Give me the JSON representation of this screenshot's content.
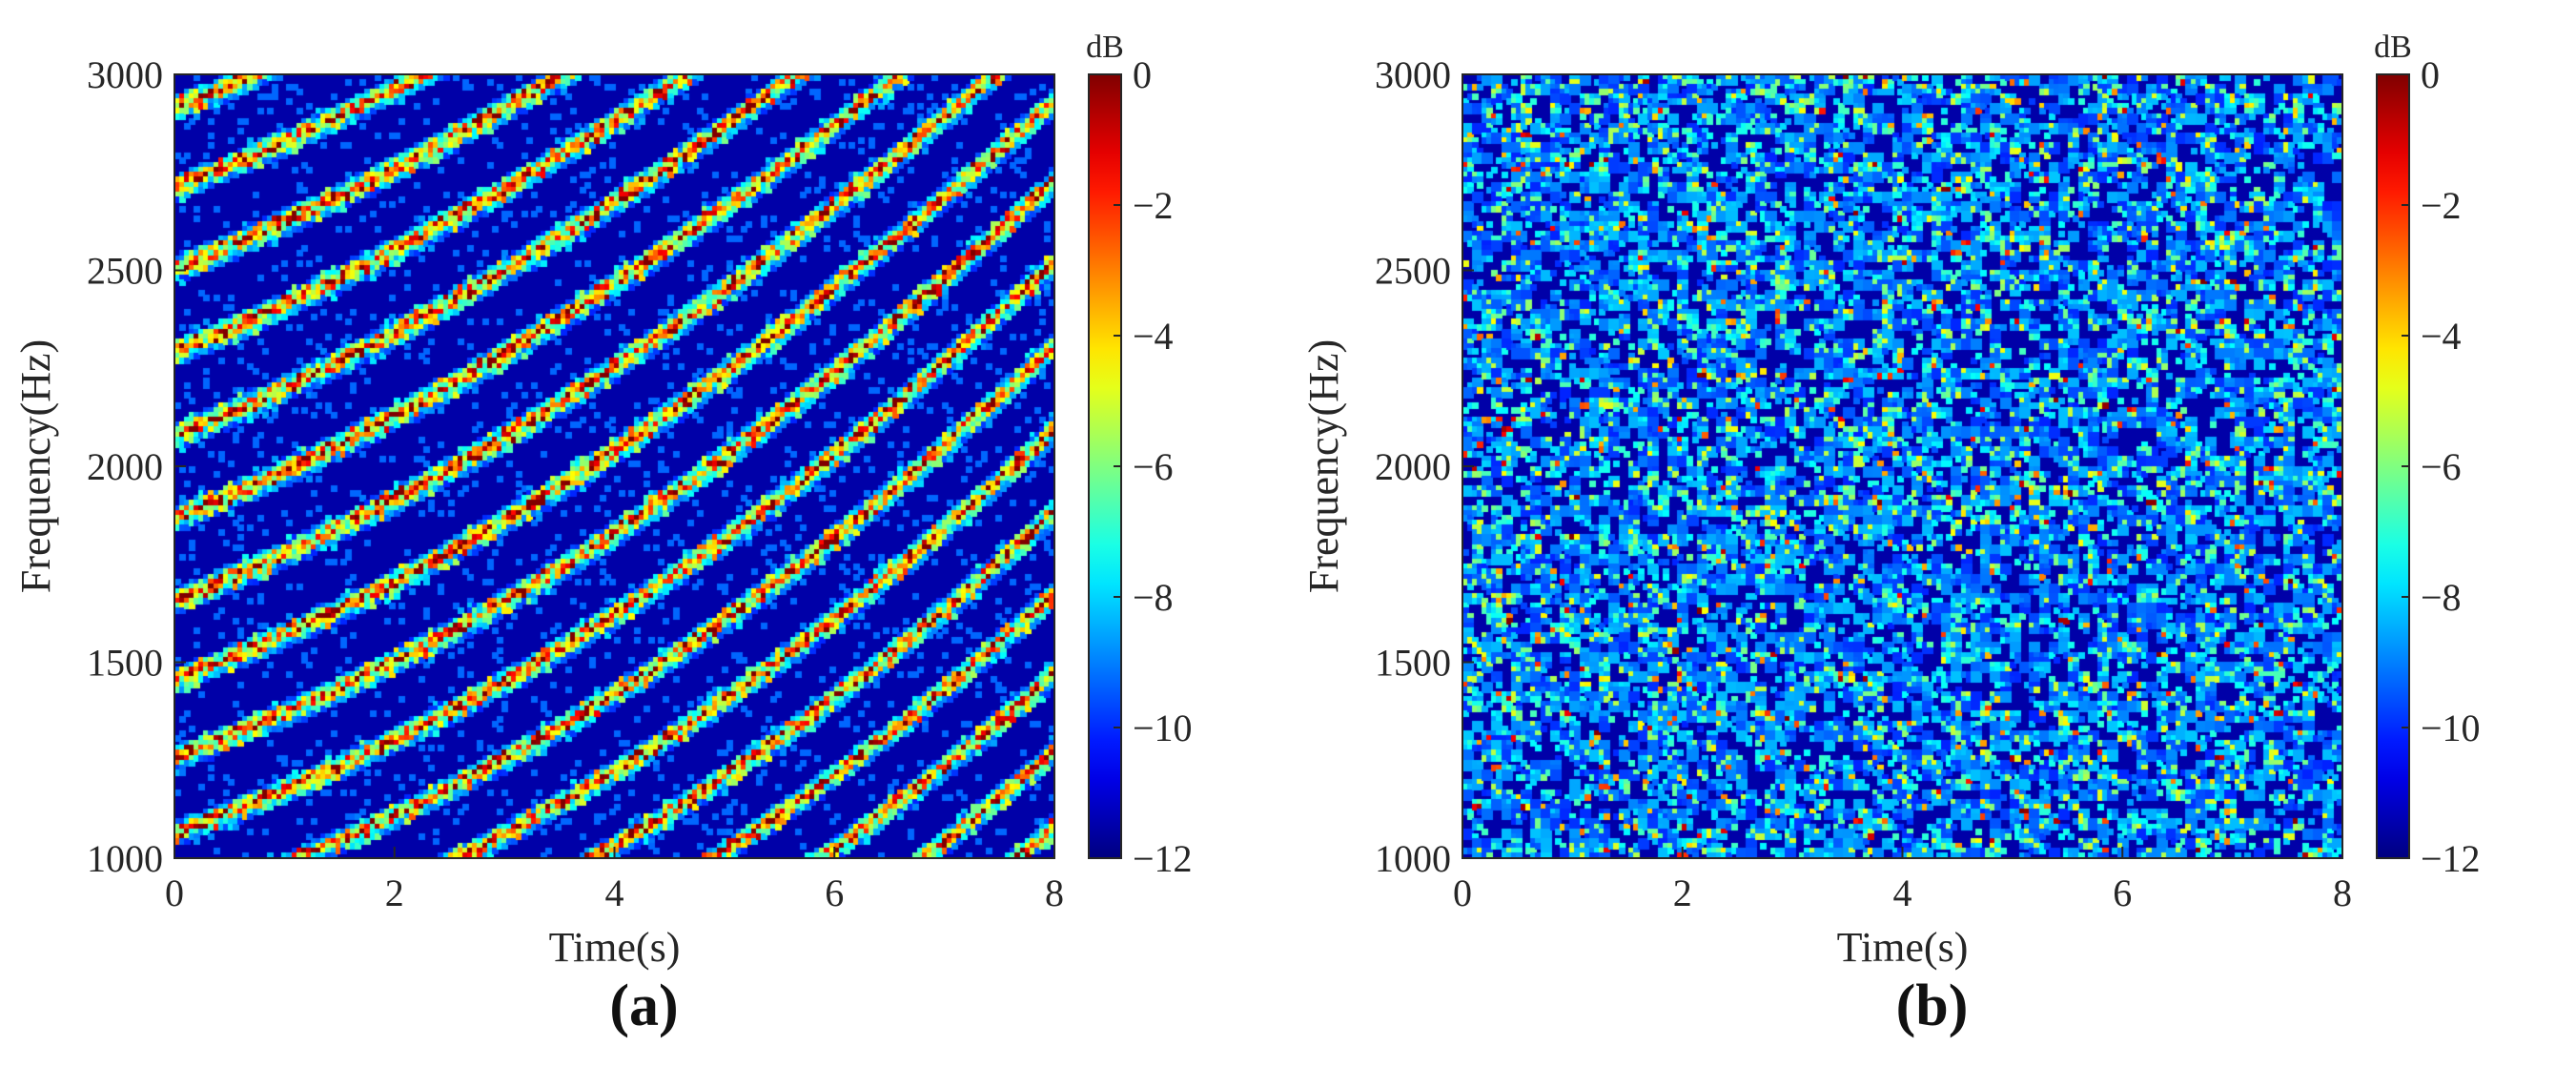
{
  "figure_labels": [
    "(a)",
    "(b)"
  ],
  "chart_data": [
    {
      "type": "heatmap",
      "panel": "a",
      "description_pattern": "diagonal",
      "title": "",
      "xlabel": "Time(s)",
      "ylabel": "Frequency(Hz)",
      "xlim": [
        0,
        8
      ],
      "ylim": [
        1000,
        3000
      ],
      "xticks": [
        0,
        2,
        4,
        6,
        8
      ],
      "yticks": [
        1000,
        1500,
        2000,
        2500,
        3000
      ],
      "colorbar": {
        "label": "dB",
        "ticks": [
          0,
          -2,
          -4,
          -6,
          -8,
          -10,
          -12
        ],
        "range": [
          -12,
          0
        ],
        "colormap": "jet"
      },
      "seed": 7
    },
    {
      "type": "heatmap",
      "panel": "b",
      "description_pattern": "scattered",
      "title": "",
      "xlabel": "Time(s)",
      "ylabel": "Frequency(Hz)",
      "xlim": [
        0,
        8
      ],
      "ylim": [
        1000,
        3000
      ],
      "xticks": [
        0,
        2,
        4,
        6,
        8
      ],
      "yticks": [
        1000,
        1500,
        2000,
        2500,
        3000
      ],
      "colorbar": {
        "label": "dB",
        "ticks": [
          0,
          -2,
          -4,
          -6,
          -8,
          -10,
          -12
        ],
        "range": [
          -12,
          0
        ],
        "colormap": "jet"
      },
      "seed": 23
    }
  ]
}
